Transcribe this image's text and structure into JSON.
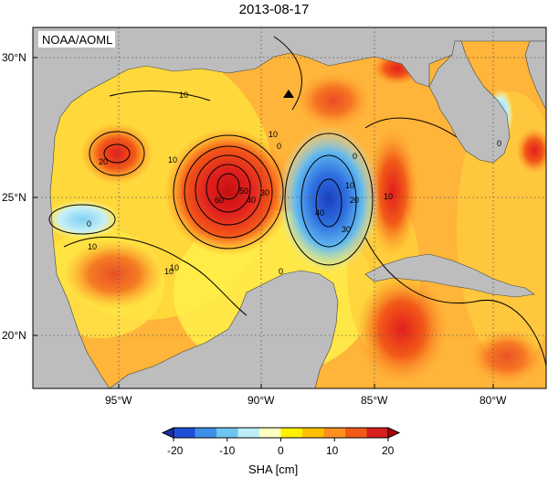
{
  "title": "2013-08-17",
  "credit": "NOAA/AOML",
  "y_tick_labels": [
    "30°N",
    "25°N",
    "20°N"
  ],
  "x_tick_labels": [
    "95°W",
    "90°W",
    "85°W",
    "80°W"
  ],
  "colorbar": {
    "label": "SHA [cm]",
    "tick_labels": [
      "-20",
      "-10",
      "0",
      "10",
      "20"
    ],
    "colors": [
      "#1f4fd6",
      "#3d8fe8",
      "#6ec6f0",
      "#bdeef8",
      "#ffffbf",
      "#fff000",
      "#ffc000",
      "#ff9020",
      "#f25a18",
      "#d91e1e"
    ]
  },
  "contour_labels": [
    "10",
    "20",
    "10",
    "10",
    "0",
    "60",
    "50",
    "40",
    "30",
    "10",
    "0",
    "10",
    "20",
    "30",
    "40",
    "10",
    "0",
    "0",
    "0",
    "10",
    "10"
  ],
  "marker": "triangle-marker",
  "colors": {
    "land": "#bdbdbd",
    "warm_core": "#e01e1e",
    "cold_core": "#1f55d6",
    "background_sea": "#ffbe3c"
  }
}
